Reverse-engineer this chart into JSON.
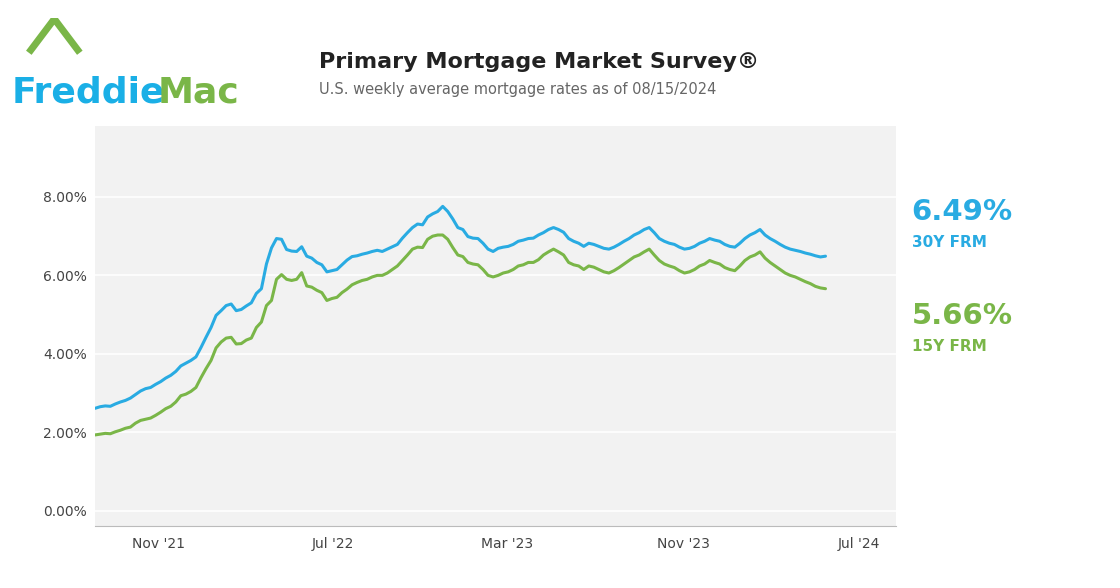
{
  "title": "Primary Mortgage Market Survey®",
  "subtitle": "U.S. weekly average mortgage rates as of 08/15/2024",
  "rate_30y_label": "6.49%",
  "rate_30y_sublabel": "30Y FRM",
  "rate_15y_label": "5.66%",
  "rate_15y_sublabel": "15Y FRM",
  "color_30y": "#29ABE2",
  "color_15y": "#7AB648",
  "color_freddie_blue": "#1AAFE6",
  "color_freddie_green": "#7AB648",
  "background": "#ffffff",
  "plot_bg": "#f2f2f2",
  "grid_color": "#ffffff",
  "title_color": "#222222",
  "subtitle_color": "#666666",
  "ytick_values": [
    0.0,
    2.0,
    4.0,
    6.0,
    8.0
  ],
  "xtick_labels": [
    "Nov '21",
    "Jul '22",
    "Mar '23",
    "Nov '23",
    "Jul '24"
  ],
  "ylim": [
    -0.4,
    9.8
  ],
  "linewidth": 2.2,
  "data_30y": [
    2.61,
    2.65,
    2.67,
    2.66,
    2.72,
    2.77,
    2.81,
    2.87,
    2.96,
    3.05,
    3.11,
    3.14,
    3.22,
    3.29,
    3.38,
    3.45,
    3.55,
    3.69,
    3.76,
    3.83,
    3.92,
    4.16,
    4.42,
    4.67,
    4.98,
    5.1,
    5.23,
    5.27,
    5.1,
    5.13,
    5.22,
    5.3,
    5.54,
    5.66,
    6.29,
    6.7,
    6.94,
    6.92,
    6.66,
    6.62,
    6.61,
    6.73,
    6.49,
    6.44,
    6.33,
    6.27,
    6.09,
    6.12,
    6.15,
    6.27,
    6.39,
    6.48,
    6.5,
    6.54,
    6.57,
    6.61,
    6.64,
    6.61,
    6.67,
    6.73,
    6.79,
    6.95,
    7.09,
    7.22,
    7.31,
    7.29,
    7.49,
    7.57,
    7.63,
    7.76,
    7.63,
    7.44,
    7.22,
    7.17,
    6.99,
    6.95,
    6.94,
    6.82,
    6.67,
    6.61,
    6.69,
    6.72,
    6.74,
    6.79,
    6.87,
    6.9,
    6.94,
    6.95,
    7.03,
    7.09,
    7.17,
    7.22,
    7.17,
    7.1,
    6.94,
    6.87,
    6.82,
    6.74,
    6.82,
    6.79,
    6.74,
    6.69,
    6.67,
    6.72,
    6.79,
    6.87,
    6.94,
    7.03,
    7.09,
    7.17,
    7.22,
    7.09,
    6.94,
    6.87,
    6.82,
    6.79,
    6.72,
    6.67,
    6.69,
    6.74,
    6.82,
    6.87,
    6.94,
    6.9,
    6.87,
    6.79,
    6.74,
    6.72,
    6.82,
    6.94,
    7.03,
    7.09,
    7.17,
    7.03,
    6.94,
    6.87,
    6.79,
    6.72,
    6.67,
    6.64,
    6.61,
    6.57,
    6.54,
    6.5,
    6.47,
    6.49
  ],
  "data_15y": [
    1.93,
    1.95,
    1.97,
    1.96,
    2.01,
    2.05,
    2.1,
    2.13,
    2.23,
    2.3,
    2.33,
    2.36,
    2.43,
    2.51,
    2.6,
    2.66,
    2.77,
    2.93,
    2.97,
    3.04,
    3.14,
    3.39,
    3.62,
    3.83,
    4.15,
    4.3,
    4.4,
    4.42,
    4.25,
    4.26,
    4.35,
    4.4,
    4.67,
    4.81,
    5.23,
    5.36,
    5.9,
    6.02,
    5.9,
    5.87,
    5.9,
    6.07,
    5.73,
    5.7,
    5.62,
    5.56,
    5.36,
    5.41,
    5.44,
    5.56,
    5.65,
    5.76,
    5.82,
    5.87,
    5.9,
    5.96,
    6.0,
    6.0,
    6.06,
    6.15,
    6.24,
    6.38,
    6.52,
    6.67,
    6.72,
    6.71,
    6.92,
    7.0,
    7.03,
    7.03,
    6.92,
    6.71,
    6.52,
    6.48,
    6.33,
    6.29,
    6.27,
    6.15,
    6.0,
    5.96,
    6.0,
    6.06,
    6.09,
    6.15,
    6.24,
    6.27,
    6.33,
    6.33,
    6.4,
    6.52,
    6.6,
    6.67,
    6.6,
    6.52,
    6.33,
    6.27,
    6.24,
    6.15,
    6.24,
    6.21,
    6.15,
    6.09,
    6.06,
    6.12,
    6.2,
    6.29,
    6.38,
    6.47,
    6.52,
    6.6,
    6.67,
    6.52,
    6.38,
    6.29,
    6.24,
    6.2,
    6.12,
    6.06,
    6.09,
    6.15,
    6.24,
    6.29,
    6.38,
    6.33,
    6.29,
    6.2,
    6.15,
    6.12,
    6.24,
    6.38,
    6.47,
    6.52,
    6.6,
    6.44,
    6.33,
    6.24,
    6.15,
    6.06,
    6.0,
    5.96,
    5.9,
    5.84,
    5.79,
    5.72,
    5.68,
    5.66
  ]
}
